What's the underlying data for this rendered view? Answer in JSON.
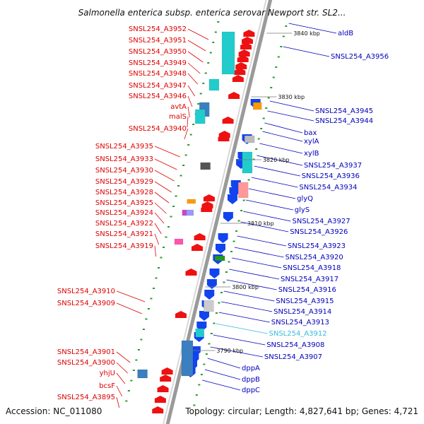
{
  "title": "Salmonella enterica subsp. enterica serovar Newport str. SL2...",
  "footer": {
    "accession": "Accession: NC_011080",
    "topology": "Topology: circular; Length: 4,827,641 bp; Genes: 4,721"
  },
  "colors": {
    "left_label": "#dd0000",
    "right_label": "#0000bb",
    "highlight_label": "#33bbdd",
    "backbone": "#888888",
    "tick": "#229922"
  },
  "scale_labels": [
    "3840 kbp",
    "3830 kbp",
    "3820 kbp",
    "3810 kbp",
    "3800 kbp",
    "3790 kbp"
  ],
  "left_genes": [
    "SNSL254_A3952",
    "SNSL254_A3951",
    "SNSL254_A3950",
    "SNSL254_A3949",
    "SNSL254_A3948",
    "SNSL254_A3947",
    "SNSL254_A3946",
    "avtA",
    "malS",
    "SNSL254_A3940",
    "SNSL254_A3935",
    "SNSL254_A3933",
    "SNSL254_A3930",
    "SNSL254_A3929",
    "SNSL254_A3928",
    "SNSL254_A3925",
    "SNSL254_A3924",
    "SNSL254_A3922",
    "SNSL254_A3921",
    "SNSL254_A3919",
    "SNSL254_A3910",
    "SNSL254_A3909",
    "SNSL254_A3901",
    "SNSL254_A3900",
    "yhjU",
    "bcsF",
    "SNSL254_A3895"
  ],
  "right_genes": [
    "aldB",
    "SNSL254_A3956",
    "SNSL254_A3945",
    "SNSL254_A3944",
    "bax",
    "xylA",
    "xylB",
    "SNSL254_A3937",
    "SNSL254_A3936",
    "SNSL254_A3934",
    "glyQ",
    "glyS",
    "SNSL254_A3927",
    "SNSL254_A3926",
    "SNSL254_A3923",
    "SNSL254_A3920",
    "SNSL254_A3918",
    "SNSL254_A3917",
    "SNSL254_A3916",
    "SNSL254_A3915",
    "SNSL254_A3914",
    "SNSL254_A3913",
    "SNSL254_A3912",
    "SNSL254_A3908",
    "SNSL254_A3907",
    "dppA",
    "dppB",
    "dppC"
  ],
  "highlighted_gene": "SNSL254_A3912"
}
